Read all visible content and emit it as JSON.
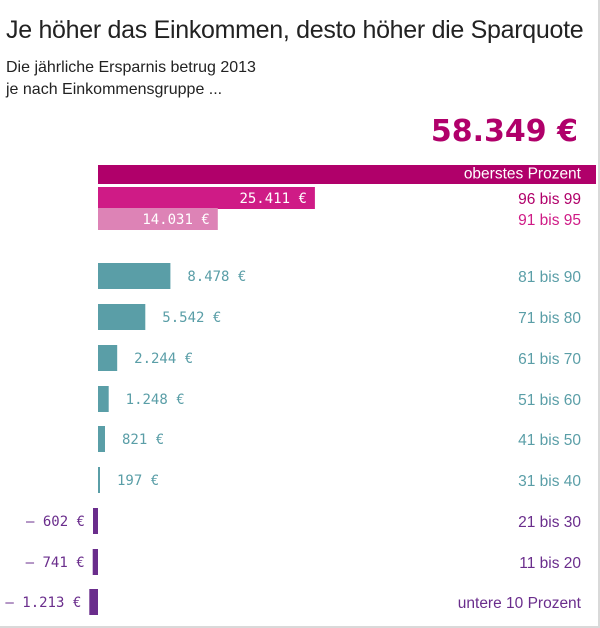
{
  "header": {
    "title": "Je höher das Einkommen, desto höher die Sparquote",
    "subtitle_line1": "Die jährliche Ersparnis betrug 2013",
    "subtitle_line2": "je nach Einkommensgruppe ..."
  },
  "colors": {
    "top1": "#b0006a",
    "top2": "#cf1b86",
    "top3": "#dd83b6",
    "mid": "#5a9ea7",
    "neg": "#6a2d8c"
  },
  "chart_data": {
    "type": "bar",
    "orientation": "horizontal",
    "title": "Je höher das Einkommen, desto höher die Sparquote",
    "subtitle": "Die jährliche Ersparnis betrug 2013 je nach Einkommensgruppe ...",
    "unit": "€",
    "categories": [
      "oberstes Prozent",
      "96 bis 99",
      "91 bis 95",
      "81 bis 90",
      "71 bis 80",
      "61 bis 70",
      "51 bis 60",
      "41 bis 50",
      "31 bis 40",
      "21 bis 30",
      "11 bis 20",
      "untere 10 Prozent"
    ],
    "values": [
      58349,
      25411,
      14031,
      8478,
      5542,
      2244,
      1248,
      821,
      197,
      -602,
      -741,
      -1213
    ],
    "value_labels": [
      "58.349 €",
      "25.411 €",
      "14.031 €",
      "8.478 €",
      "5.542 €",
      "2.244 €",
      "1.248 €",
      "821 €",
      "197 €",
      "– 602 €",
      "– 741 €",
      "– 1.213 €"
    ],
    "colors": [
      "#b0006a",
      "#cf1b86",
      "#dd83b6",
      "#5a9ea7",
      "#5a9ea7",
      "#5a9ea7",
      "#5a9ea7",
      "#5a9ea7",
      "#5a9ea7",
      "#6a2d8c",
      "#6a2d8c",
      "#6a2d8c"
    ],
    "grid": false,
    "legend": "none"
  }
}
